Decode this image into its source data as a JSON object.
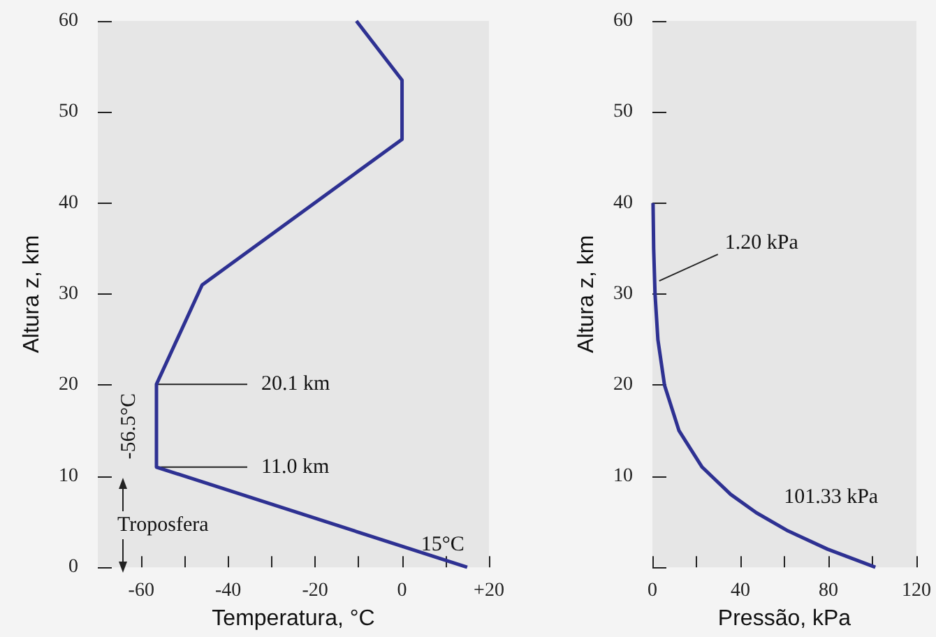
{
  "chart_data": [
    {
      "type": "line",
      "xlabel": "Temperatura, °C",
      "ylabel": "Altura z, km",
      "x": [
        15,
        -56.5,
        -56.5,
        -46,
        0,
        0,
        -10.5
      ],
      "series": [
        {
          "color": "#2e3192",
          "values": [
            0,
            11,
            20.1,
            31,
            47,
            53.5,
            60
          ]
        }
      ],
      "xlim": [
        -70,
        20
      ],
      "xticks": [
        -60,
        {
          "value": -50,
          "label": null
        },
        -40,
        {
          "value": -30,
          "label": null
        },
        -20,
        {
          "value": -10,
          "label": null
        },
        0,
        {
          "value": 10,
          "label": null
        },
        {
          "value": 20,
          "label": "+20"
        }
      ],
      "ylim": [
        0,
        60
      ],
      "yticks": [
        0,
        10,
        20,
        30,
        40,
        50,
        60
      ],
      "grid": false,
      "annotations": [
        "Troposfera",
        {
          "text": "20.1 km",
          "x": -56.5,
          "y": 20.1
        },
        {
          "text": "11.0 km",
          "x": -56.5,
          "y": 11
        },
        {
          "text": "-56.5°C",
          "x": -56.5,
          "y": 15.5
        },
        {
          "text": "15°C",
          "x": 15,
          "y": 0
        }
      ]
    },
    {
      "type": "line",
      "xlabel": "Pressão, kPa",
      "ylabel": "Altura z, km",
      "x": [
        101.33,
        79.5,
        61.6,
        47.2,
        35.6,
        22.6,
        12.1,
        5.5,
        2.5,
        1.2,
        0.57,
        0.29
      ],
      "series": [
        {
          "color": "#2e3192",
          "values": [
            0,
            2,
            4,
            6,
            8,
            11,
            15,
            20,
            25,
            30,
            35,
            40
          ]
        }
      ],
      "xlim": [
        0,
        120
      ],
      "xticks": [
        0,
        {
          "value": 20,
          "label": null
        },
        40,
        {
          "value": 60,
          "label": null
        },
        80,
        {
          "value": 100,
          "label": null
        },
        120
      ],
      "ylim": [
        0,
        60
      ],
      "yticks": [
        {
          "value": 0,
          "label": null
        },
        10,
        20,
        30,
        40,
        50,
        60
      ],
      "grid": false,
      "annotations": [
        {
          "text": "1.20 kPa",
          "x": 1.2,
          "y": 31
        },
        {
          "text": "101.33 kPa",
          "x": 101.33,
          "y": 0
        }
      ]
    }
  ]
}
